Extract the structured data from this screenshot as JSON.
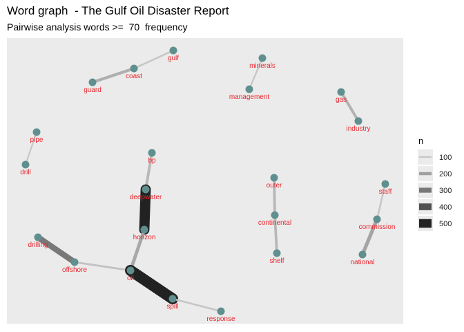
{
  "title": "Word graph  - The Gulf Oil Disaster Report",
  "subtitle": "Pairwise analysis words >=  70  frequency",
  "colors": {
    "panel": "#ebebeb",
    "node": "#5f8f8e",
    "label": "#e8262e"
  },
  "legend": {
    "title": "n",
    "entries": [
      {
        "label": "100",
        "color": "#c6c6c6"
      },
      {
        "label": "200",
        "color": "#a0a0a0"
      },
      {
        "label": "300",
        "color": "#787878"
      },
      {
        "label": "400",
        "color": "#505050"
      },
      {
        "label": "500",
        "color": "#222222"
      }
    ]
  },
  "nodes": [
    {
      "id": "gulf",
      "label": "gulf"
    },
    {
      "id": "coast",
      "label": "coast"
    },
    {
      "id": "guard",
      "label": "guard"
    },
    {
      "id": "minerals",
      "label": "minerals"
    },
    {
      "id": "management",
      "label": "management"
    },
    {
      "id": "gas",
      "label": "gas"
    },
    {
      "id": "industry",
      "label": "industry"
    },
    {
      "id": "pipe",
      "label": "pipe"
    },
    {
      "id": "drill",
      "label": "drill"
    },
    {
      "id": "bp",
      "label": "bp"
    },
    {
      "id": "deepwater",
      "label": "deepwater"
    },
    {
      "id": "horizon",
      "label": "horizon"
    },
    {
      "id": "drilling",
      "label": "drilling"
    },
    {
      "id": "offshore",
      "label": "offshore"
    },
    {
      "id": "oil",
      "label": "oil"
    },
    {
      "id": "spill",
      "label": "spill"
    },
    {
      "id": "response",
      "label": "response"
    },
    {
      "id": "outer",
      "label": "outer"
    },
    {
      "id": "continental",
      "label": "continental"
    },
    {
      "id": "shelf",
      "label": "shelf"
    },
    {
      "id": "staff",
      "label": "staff"
    },
    {
      "id": "commission",
      "label": "commission"
    },
    {
      "id": "national",
      "label": "national"
    }
  ],
  "edges": [
    {
      "from": "gulf",
      "to": "coast",
      "n": 100
    },
    {
      "from": "coast",
      "to": "guard",
      "n": 160
    },
    {
      "from": "minerals",
      "to": "management",
      "n": 90
    },
    {
      "from": "gas",
      "to": "industry",
      "n": 150
    },
    {
      "from": "pipe",
      "to": "drill",
      "n": 80
    },
    {
      "from": "bp",
      "to": "deepwater",
      "n": 140
    },
    {
      "from": "deepwater",
      "to": "horizon",
      "n": 520
    },
    {
      "from": "horizon",
      "to": "oil",
      "n": 180
    },
    {
      "from": "drilling",
      "to": "offshore",
      "n": 300
    },
    {
      "from": "offshore",
      "to": "oil",
      "n": 110
    },
    {
      "from": "oil",
      "to": "spill",
      "n": 560
    },
    {
      "from": "spill",
      "to": "response",
      "n": 100
    },
    {
      "from": "outer",
      "to": "continental",
      "n": 140
    },
    {
      "from": "continental",
      "to": "shelf",
      "n": 140
    },
    {
      "from": "staff",
      "to": "commission",
      "n": 100
    },
    {
      "from": "commission",
      "to": "national",
      "n": 190
    }
  ]
}
